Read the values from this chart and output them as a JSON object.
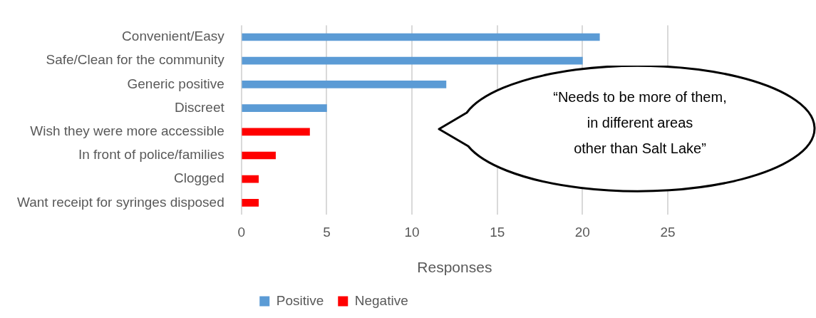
{
  "chart_data": {
    "type": "bar",
    "orientation": "horizontal",
    "stacked": true,
    "xlabel": "Responses",
    "categories": [
      "Convenient/Easy",
      "Safe/Clean for the community",
      "Generic positive",
      "Discreet",
      "Wish they were more accessible",
      "In front of police/families",
      "Clogged",
      "Want receipt for syringes disposed"
    ],
    "series": [
      {
        "name": "Positive",
        "color": "#5b9bd5",
        "values": [
          21,
          20,
          12,
          5,
          null,
          null,
          null,
          null
        ]
      },
      {
        "name": "Negative",
        "color": "#ff0000",
        "values": [
          null,
          null,
          null,
          null,
          4,
          2,
          1,
          1
        ]
      }
    ],
    "xlim": [
      0,
      25
    ],
    "xticks": [
      0,
      5,
      10,
      15,
      20,
      25
    ],
    "grid": "x",
    "legend": "bottom",
    "annotations": [
      "“Needs to be more of them,\nin different areas\nother than Salt Lake”"
    ]
  }
}
